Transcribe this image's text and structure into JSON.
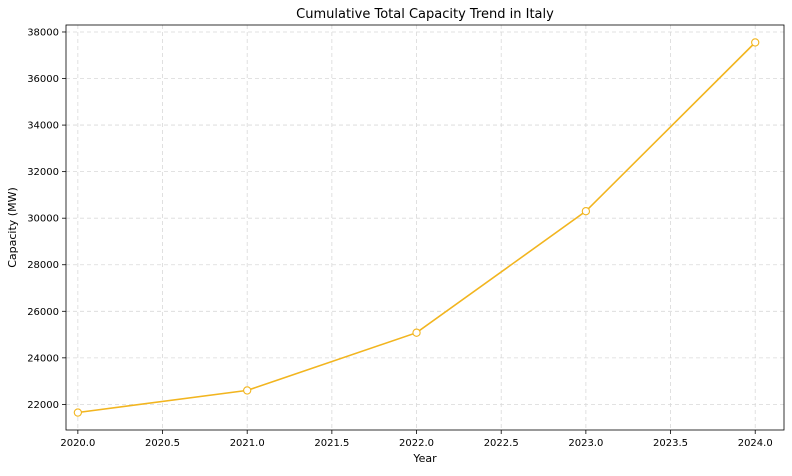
{
  "chart_data": {
    "type": "line",
    "title": "Cumulative Total Capacity Trend in Italy",
    "xlabel": "Year",
    "ylabel": "Capacity (MW)",
    "xlim": [
      2019.93,
      2024.17
    ],
    "ylim": [
      20900,
      38300
    ],
    "x_ticks": [
      2020.0,
      2020.5,
      2021.0,
      2021.5,
      2022.0,
      2022.5,
      2023.0,
      2023.5,
      2024.0
    ],
    "x_tick_labels": [
      "2020.0",
      "2020.5",
      "2021.0",
      "2021.5",
      "2022.0",
      "2022.5",
      "2023.0",
      "2023.5",
      "2024.0"
    ],
    "y_ticks": [
      22000,
      24000,
      26000,
      28000,
      30000,
      32000,
      34000,
      36000,
      38000
    ],
    "y_tick_labels": [
      "22000",
      "24000",
      "26000",
      "28000",
      "30000",
      "32000",
      "34000",
      "36000",
      "38000"
    ],
    "grid": true,
    "series": [
      {
        "x": [
          2020,
          2021,
          2022,
          2023,
          2024
        ],
        "values": [
          21650,
          22600,
          25080,
          30300,
          37550
        ],
        "color": "#f2b51f",
        "marker": "open-circle"
      }
    ]
  }
}
